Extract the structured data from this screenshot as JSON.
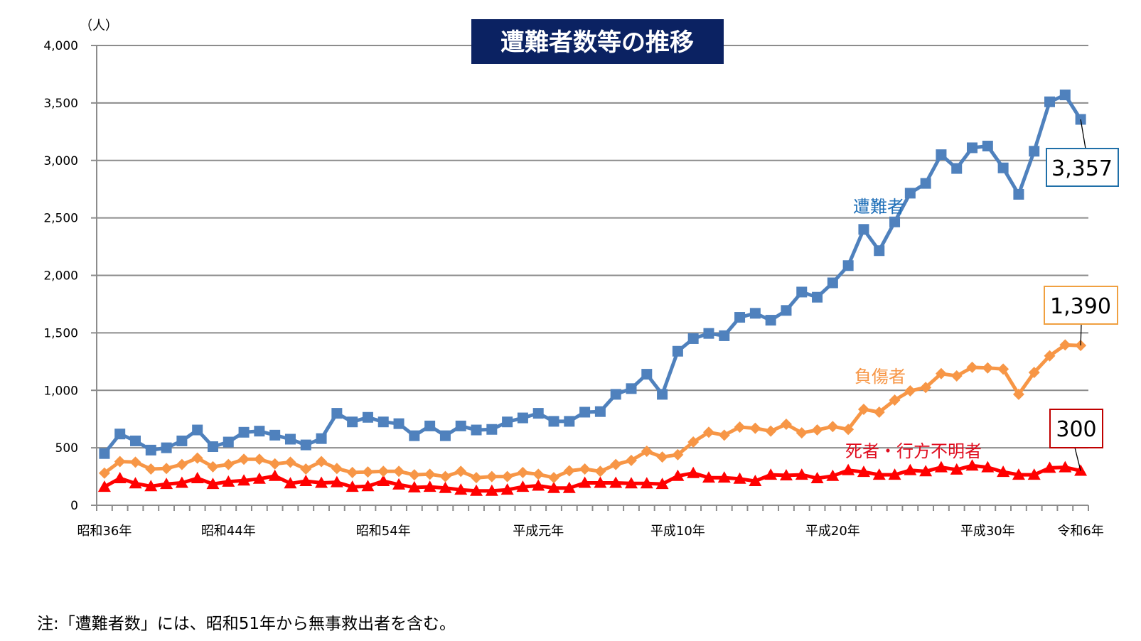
{
  "chart_data": {
    "type": "line",
    "title": "遭難者数等の推移",
    "ylabel": "（人）",
    "xlabel": "",
    "ylim": [
      0,
      4000
    ],
    "yticks": [
      0,
      500,
      1000,
      1500,
      2000,
      2500,
      3000,
      3500,
      4000
    ],
    "ytick_labels": [
      "0",
      "500",
      "1,000",
      "1,500",
      "2,000",
      "2,500",
      "3,000",
      "3,500",
      "4,000"
    ],
    "grid": true,
    "x": [
      "昭和36年",
      "昭和37年",
      "昭和38年",
      "昭和39年",
      "昭和40年",
      "昭和41年",
      "昭和42年",
      "昭和43年",
      "昭和44年",
      "昭和45年",
      "昭和46年",
      "昭和47年",
      "昭和48年",
      "昭和49年",
      "昭和50年",
      "昭和51年",
      "昭和52年",
      "昭和53年",
      "昭和54年",
      "昭和55年",
      "昭和56年",
      "昭和57年",
      "昭和58年",
      "昭和59年",
      "昭和60年",
      "昭和61年",
      "昭和62年",
      "昭和63年",
      "平成元年",
      "平成2年",
      "平成3年",
      "平成4年",
      "平成5年",
      "平成6年",
      "平成7年",
      "平成8年",
      "平成9年",
      "平成10年",
      "平成11年",
      "平成12年",
      "平成13年",
      "平成14年",
      "平成15年",
      "平成16年",
      "平成17年",
      "平成18年",
      "平成19年",
      "平成20年",
      "平成21年",
      "平成22年",
      "平成23年",
      "平成24年",
      "平成25年",
      "平成26年",
      "平成27年",
      "平成28年",
      "平成29年",
      "平成30年",
      "令和元年",
      "令和2年",
      "令和3年",
      "令和4年",
      "令和5年",
      "令和6年"
    ],
    "xtick_labels": [
      {
        "index": 0,
        "label": "昭和36年"
      },
      {
        "index": 8,
        "label": "昭和44年"
      },
      {
        "index": 18,
        "label": "昭和54年"
      },
      {
        "index": 28,
        "label": "平成元年"
      },
      {
        "index": 37,
        "label": "平成10年"
      },
      {
        "index": 47,
        "label": "平成20年"
      },
      {
        "index": 57,
        "label": "平成30年"
      },
      {
        "index": 63,
        "label": "令和6年"
      }
    ],
    "series": [
      {
        "name": "遭難者",
        "color": "#4f81bd",
        "label_color": "#1f6fb8",
        "marker": "square",
        "values": [
          450,
          620,
          560,
          480,
          500,
          560,
          655,
          510,
          550,
          635,
          645,
          610,
          575,
          525,
          580,
          800,
          725,
          765,
          725,
          710,
          605,
          690,
          605,
          690,
          655,
          660,
          725,
          760,
          800,
          730,
          730,
          810,
          815,
          965,
          1015,
          1140,
          965,
          1340,
          1450,
          1495,
          1475,
          1635,
          1670,
          1610,
          1695,
          1855,
          1810,
          1935,
          2085,
          2400,
          2215,
          2465,
          2715,
          2800,
          3050,
          2930,
          3110,
          3125,
          2935,
          2705,
          3080,
          3510,
          3570,
          3357
        ],
        "last_value_label": "3,357"
      },
      {
        "name": "負傷者",
        "color": "#f79646",
        "label_color": "#f79646",
        "marker": "diamond",
        "values": [
          280,
          380,
          375,
          315,
          320,
          355,
          410,
          335,
          355,
          400,
          400,
          360,
          375,
          315,
          380,
          320,
          285,
          290,
          295,
          295,
          265,
          270,
          250,
          295,
          240,
          250,
          250,
          285,
          270,
          240,
          300,
          315,
          295,
          355,
          390,
          470,
          420,
          440,
          550,
          635,
          610,
          680,
          670,
          645,
          705,
          630,
          655,
          685,
          660,
          835,
          810,
          915,
          995,
          1025,
          1145,
          1125,
          1200,
          1195,
          1185,
          965,
          1155,
          1300,
          1395,
          1390
        ],
        "last_value_label": "1,390"
      },
      {
        "name": "死者・行方不明者",
        "color": "#ff0000",
        "label_color": "#e00c1e",
        "marker": "triangle",
        "values": [
          160,
          235,
          190,
          165,
          185,
          195,
          235,
          185,
          205,
          215,
          230,
          255,
          190,
          210,
          195,
          200,
          160,
          165,
          210,
          180,
          155,
          160,
          150,
          135,
          125,
          125,
          135,
          160,
          170,
          150,
          150,
          195,
          195,
          195,
          190,
          190,
          185,
          255,
          280,
          240,
          240,
          230,
          210,
          265,
          260,
          265,
          235,
          255,
          305,
          290,
          265,
          265,
          305,
          295,
          330,
          310,
          345,
          330,
          290,
          265,
          265,
          325,
          330,
          300
        ],
        "last_value_label": "300"
      }
    ],
    "callout_border_colors": [
      "#1f6fa8",
      "#f0a040",
      "#c00000"
    ],
    "title_bg": "#0b2262"
  },
  "note": "注:「遭難者数」には、昭和51年から無事救出者を含む。"
}
